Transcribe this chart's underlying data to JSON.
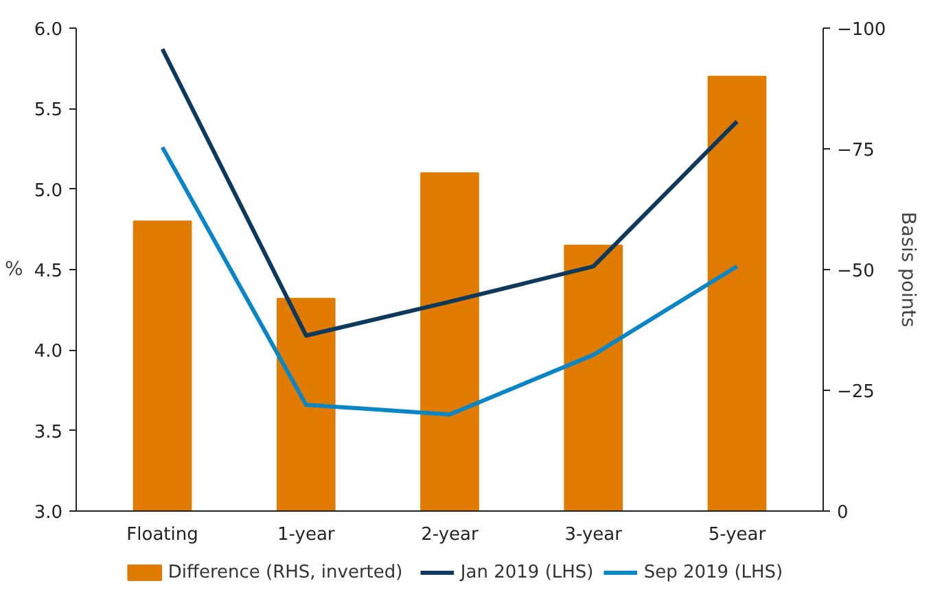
{
  "chart_data": {
    "type": "line",
    "categories": [
      "Floating",
      "1-year",
      "2-year",
      "3-year",
      "5-year"
    ],
    "ylabel": "%",
    "y2label": "Basis points",
    "ylim": [
      3.0,
      6.0
    ],
    "yticks": [
      {
        "value": 3.0,
        "label": "3.0"
      },
      {
        "value": 3.5,
        "label": "3.5"
      },
      {
        "value": 4.0,
        "label": "4.0"
      },
      {
        "value": 4.5,
        "label": "4.5"
      },
      {
        "value": 5.0,
        "label": "5.0"
      },
      {
        "value": 5.5,
        "label": "5.5"
      },
      {
        "value": 6.0,
        "label": "6.0"
      }
    ],
    "y2lim": [
      0,
      -100
    ],
    "y2ticks": [
      -100,
      -75,
      -50,
      -25,
      0
    ],
    "grid": false,
    "legend": "bottom",
    "marker": "none",
    "line_style": "solid",
    "series": [
      {
        "name": "Difference (RHS, inverted)",
        "type": "bar",
        "axis": "y2",
        "color": "#e07b00",
        "values": [
          -60,
          -44,
          -70,
          -55,
          -90
        ]
      },
      {
        "name": "Jan 2019 (LHS)",
        "color": "#0d3a5c",
        "values": [
          5.87,
          4.09,
          4.3,
          4.52,
          5.42
        ]
      },
      {
        "name": "Sep 2019 (LHS)",
        "color": "#0a86c6",
        "values": [
          5.26,
          3.66,
          3.6,
          3.97,
          4.52
        ]
      }
    ]
  }
}
